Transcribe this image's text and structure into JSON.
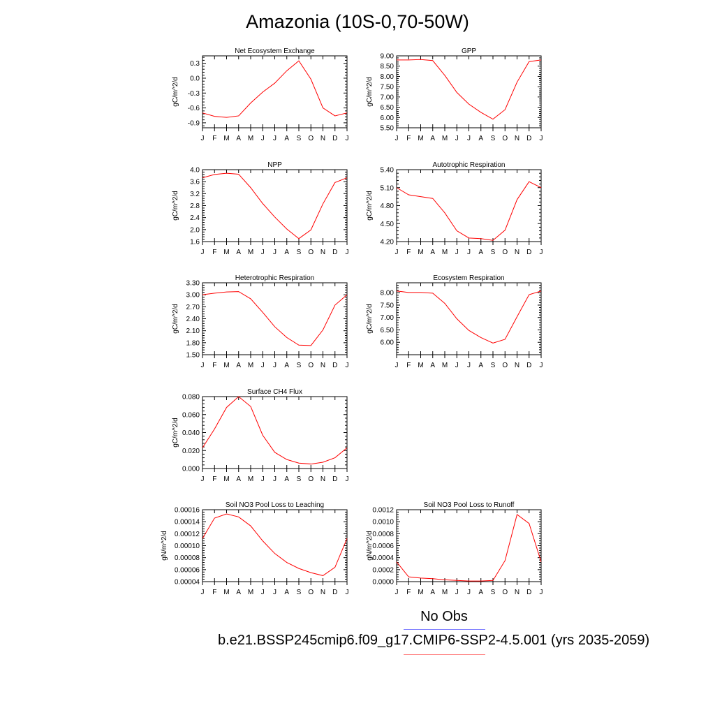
{
  "figure": {
    "title": "Amazonia (10S-0,70-50W)",
    "legend": {
      "obs_label": "No Obs",
      "obs_color": "#8080ff",
      "model_label": "b.e21.BSSP245cmip6.f09_g17.CMIP6-SSP2-4.5.001 (yrs 2035-2059)",
      "model_color": "#ff8080"
    },
    "line_color": "#ff0000"
  },
  "chart_data": [
    {
      "type": "line",
      "title": "Net Ecosystem Exchange",
      "ylabel": "gC/m^2/d",
      "categories": [
        "J",
        "F",
        "M",
        "A",
        "M",
        "J",
        "J",
        "A",
        "S",
        "O",
        "N",
        "D",
        "J"
      ],
      "ylim": [
        -1.0,
        0.45
      ],
      "yticks": [
        "0.3",
        "0.0",
        "-0.3",
        "-0.6",
        "-0.9"
      ],
      "ytick_values": [
        0.3,
        0.0,
        -0.3,
        -0.6,
        -0.9
      ],
      "series": [
        {
          "values": [
            -0.7,
            -0.77,
            -0.79,
            -0.76,
            -0.5,
            -0.28,
            -0.1,
            0.15,
            0.35,
            -0.02,
            -0.6,
            -0.76,
            -0.7
          ]
        }
      ]
    },
    {
      "type": "line",
      "title": "GPP",
      "ylabel": "gC/m^2/d",
      "categories": [
        "J",
        "F",
        "M",
        "A",
        "M",
        "J",
        "J",
        "A",
        "S",
        "O",
        "N",
        "D",
        "J"
      ],
      "ylim": [
        5.5,
        9.0
      ],
      "yticks": [
        "9.00",
        "8.50",
        "8.00",
        "7.50",
        "7.00",
        "6.50",
        "6.00",
        "5.50"
      ],
      "ytick_values": [
        9.0,
        8.5,
        8.0,
        7.5,
        7.0,
        6.5,
        6.0,
        5.5
      ],
      "series": [
        {
          "values": [
            8.8,
            8.8,
            8.82,
            8.77,
            8.05,
            7.22,
            6.65,
            6.25,
            5.92,
            6.38,
            7.72,
            8.72,
            8.8
          ]
        }
      ]
    },
    {
      "type": "line",
      "title": "NPP",
      "ylabel": "gC/m^2/d",
      "categories": [
        "J",
        "F",
        "M",
        "A",
        "M",
        "J",
        "J",
        "A",
        "S",
        "O",
        "N",
        "D",
        "J"
      ],
      "ylim": [
        1.6,
        4.0
      ],
      "yticks": [
        "4.0",
        "3.6",
        "3.2",
        "2.8",
        "2.4",
        "2.0",
        "1.6"
      ],
      "ytick_values": [
        4.0,
        3.6,
        3.2,
        2.8,
        2.4,
        2.0,
        1.6
      ],
      "series": [
        {
          "values": [
            3.73,
            3.84,
            3.88,
            3.85,
            3.4,
            2.87,
            2.42,
            2.02,
            1.7,
            1.99,
            2.86,
            3.57,
            3.73
          ]
        }
      ]
    },
    {
      "type": "line",
      "title": "Autotrophic Respiration",
      "ylabel": "gC/m^2/d",
      "categories": [
        "J",
        "F",
        "M",
        "A",
        "M",
        "J",
        "J",
        "A",
        "S",
        "O",
        "N",
        "D",
        "J"
      ],
      "ylim": [
        4.2,
        5.4
      ],
      "yticks": [
        "5.40",
        "5.10",
        "4.80",
        "4.50",
        "4.20"
      ],
      "ytick_values": [
        5.4,
        5.1,
        4.8,
        4.5,
        4.2
      ],
      "series": [
        {
          "values": [
            5.1,
            4.98,
            4.95,
            4.92,
            4.68,
            4.38,
            4.26,
            4.25,
            4.22,
            4.39,
            4.9,
            5.2,
            5.1
          ]
        }
      ]
    },
    {
      "type": "line",
      "title": "Heterotrophic Respiration",
      "ylabel": "gC/m^2/d",
      "categories": [
        "J",
        "F",
        "M",
        "A",
        "M",
        "J",
        "J",
        "A",
        "S",
        "O",
        "N",
        "D",
        "J"
      ],
      "ylim": [
        1.5,
        3.3
      ],
      "yticks": [
        "3.30",
        "3.00",
        "2.70",
        "2.40",
        "2.10",
        "1.80",
        "1.50"
      ],
      "ytick_values": [
        3.3,
        3.0,
        2.7,
        2.4,
        2.1,
        1.8,
        1.5
      ],
      "series": [
        {
          "values": [
            3.0,
            3.04,
            3.07,
            3.08,
            2.9,
            2.56,
            2.2,
            1.93,
            1.74,
            1.73,
            2.12,
            2.74,
            3.0
          ]
        }
      ]
    },
    {
      "type": "line",
      "title": "Ecosystem Respiration",
      "ylabel": "gC/m^2/d",
      "categories": [
        "J",
        "F",
        "M",
        "A",
        "M",
        "J",
        "J",
        "A",
        "S",
        "O",
        "N",
        "D",
        "J"
      ],
      "ylim": [
        5.5,
        8.4
      ],
      "yticks": [
        "8.00",
        "7.50",
        "7.00",
        "6.50",
        "6.00"
      ],
      "ytick_values": [
        8.0,
        7.5,
        7.0,
        6.5,
        6.0
      ],
      "series": [
        {
          "values": [
            8.07,
            8.01,
            8.01,
            7.98,
            7.57,
            6.95,
            6.48,
            6.19,
            5.97,
            6.12,
            7.03,
            7.92,
            8.07
          ]
        }
      ]
    },
    {
      "type": "line",
      "title": "Surface CH4 Flux",
      "ylabel": "gC/m^2/d",
      "categories": [
        "J",
        "F",
        "M",
        "A",
        "M",
        "J",
        "J",
        "A",
        "S",
        "O",
        "N",
        "D",
        "J"
      ],
      "ylim": [
        0.0,
        0.08
      ],
      "yticks": [
        "0.080",
        "0.060",
        "0.040",
        "0.020",
        "0.000"
      ],
      "ytick_values": [
        0.08,
        0.06,
        0.04,
        0.02,
        0.0
      ],
      "series": [
        {
          "values": [
            0.023,
            0.044,
            0.068,
            0.08,
            0.069,
            0.037,
            0.018,
            0.01,
            0.006,
            0.005,
            0.007,
            0.012,
            0.023
          ]
        }
      ]
    },
    {
      "type": "line",
      "title": "Soil NO3 Pool Loss to Leaching",
      "ylabel": "gN/m^2/d",
      "categories": [
        "J",
        "F",
        "M",
        "A",
        "M",
        "J",
        "J",
        "A",
        "S",
        "O",
        "N",
        "D",
        "J"
      ],
      "ylim": [
        4e-05,
        0.00016
      ],
      "yticks": [
        "0.00016",
        "0.00014",
        "0.00012",
        "0.00010",
        "0.00008",
        "0.00006",
        "0.00004"
      ],
      "ytick_values": [
        0.00016,
        0.00014,
        0.00012,
        0.0001,
        8e-05,
        6e-05,
        4e-05
      ],
      "series": [
        {
          "values": [
            0.000112,
            0.000146,
            0.000153,
            0.000148,
            0.000133,
            0.000108,
            8.7e-05,
            7.2e-05,
            6.2e-05,
            5.5e-05,
            5e-05,
            6.4e-05,
            0.000112
          ]
        }
      ]
    },
    {
      "type": "line",
      "title": "Soil NO3 Pool Loss to Runoff",
      "ylabel": "gN/m^2/d",
      "categories": [
        "J",
        "F",
        "M",
        "A",
        "M",
        "J",
        "J",
        "A",
        "S",
        "O",
        "N",
        "D",
        "J"
      ],
      "ylim": [
        0.0,
        0.0012
      ],
      "yticks": [
        "0.0012",
        "0.0010",
        "0.0008",
        "0.0006",
        "0.0004",
        "0.0002",
        "0.0000"
      ],
      "ytick_values": [
        0.0012,
        0.001,
        0.0008,
        0.0006,
        0.0004,
        0.0002,
        0.0
      ],
      "series": [
        {
          "values": [
            0.00033,
            8e-05,
            6e-05,
            5e-05,
            3e-05,
            2e-05,
            1e-05,
            1e-05,
            2e-05,
            0.00035,
            0.00112,
            0.00097,
            0.00033
          ]
        }
      ]
    }
  ]
}
